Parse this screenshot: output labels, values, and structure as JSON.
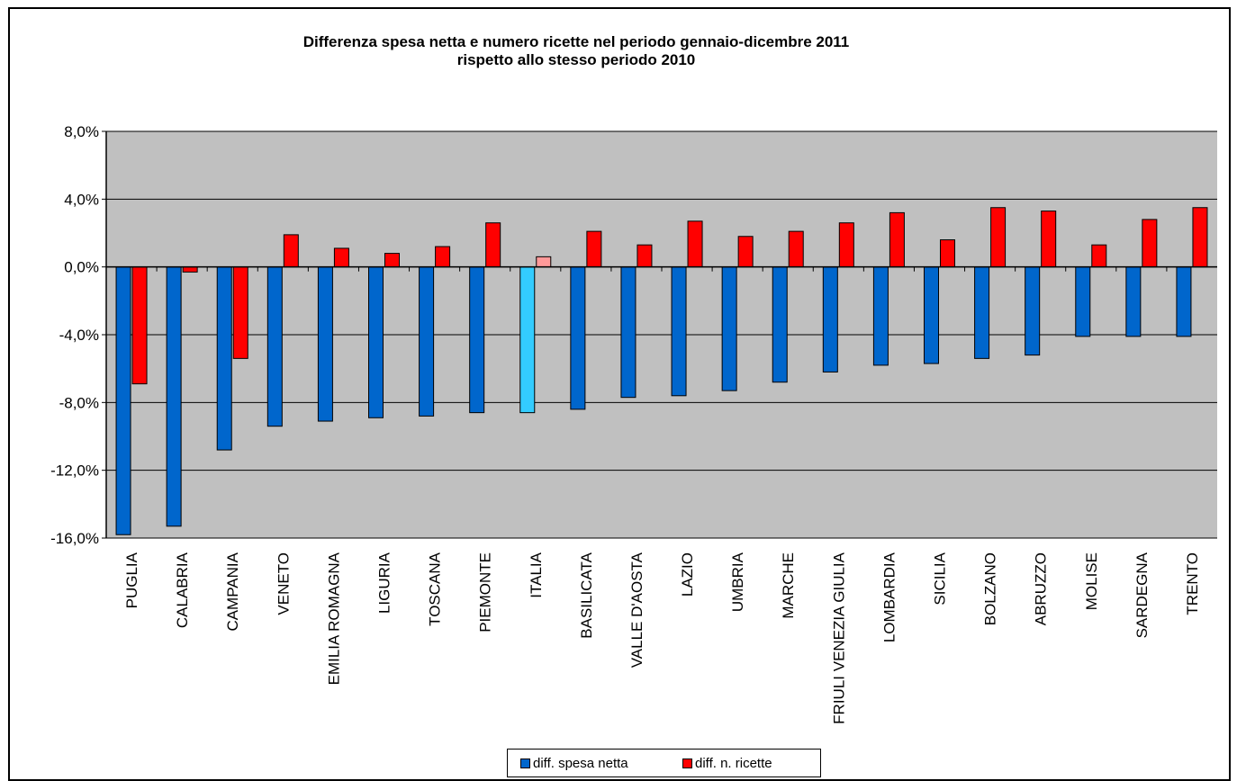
{
  "chart_data": {
    "type": "bar",
    "title": "Differenza spesa netta e numero ricette nel periodo gennaio-dicembre 2011",
    "subtitle": "rispetto allo stesso periodo 2010",
    "xlabel": "",
    "ylabel": "",
    "ylim": [
      -16,
      8
    ],
    "yticks": [
      "8,0%",
      "4,0%",
      "0,0%",
      "-4,0%",
      "-8,0%",
      "-12,0%",
      "-16,0%"
    ],
    "ytick_values": [
      8,
      4,
      0,
      -4,
      -8,
      -12,
      -16
    ],
    "grid": true,
    "legend_position": "bottom",
    "categories": [
      "PUGLIA",
      "CALABRIA",
      "CAMPANIA",
      "VENETO",
      "EMILIA ROMAGNA",
      "LIGURIA",
      "TOSCANA",
      "PIEMONTE",
      "ITALIA",
      "BASILICATA",
      "VALLE D'AOSTA",
      "LAZIO",
      "UMBRIA",
      "MARCHE",
      "FRIULI VENEZIA GIULIA",
      "LOMBARDIA",
      "SICILIA",
      "BOLZANO",
      "ABRUZZO",
      "MOLISE",
      "SARDEGNA",
      "TRENTO"
    ],
    "series": [
      {
        "name": "diff. spesa netta",
        "color": "#0066cc",
        "highlight_color": "#33ccff",
        "values": [
          -15.8,
          -15.3,
          -10.8,
          -9.4,
          -9.1,
          -8.9,
          -8.8,
          -8.6,
          -8.6,
          -8.4,
          -7.7,
          -7.6,
          -7.3,
          -6.8,
          -6.2,
          -5.8,
          -5.7,
          -5.4,
          -5.2,
          -4.1,
          -4.1,
          -4.1
        ]
      },
      {
        "name": "diff. n. ricette",
        "color": "#ff0000",
        "highlight_color": "#ff9999",
        "values": [
          -6.9,
          -0.3,
          -5.4,
          1.9,
          1.1,
          0.8,
          1.2,
          2.6,
          0.6,
          2.1,
          1.3,
          2.7,
          1.8,
          2.1,
          2.6,
          3.2,
          1.6,
          3.5,
          3.3,
          1.3,
          2.8,
          3.5
        ]
      }
    ],
    "highlight_category": "ITALIA",
    "plot_background": "#c0c0c0",
    "grid_color": "#000000"
  }
}
